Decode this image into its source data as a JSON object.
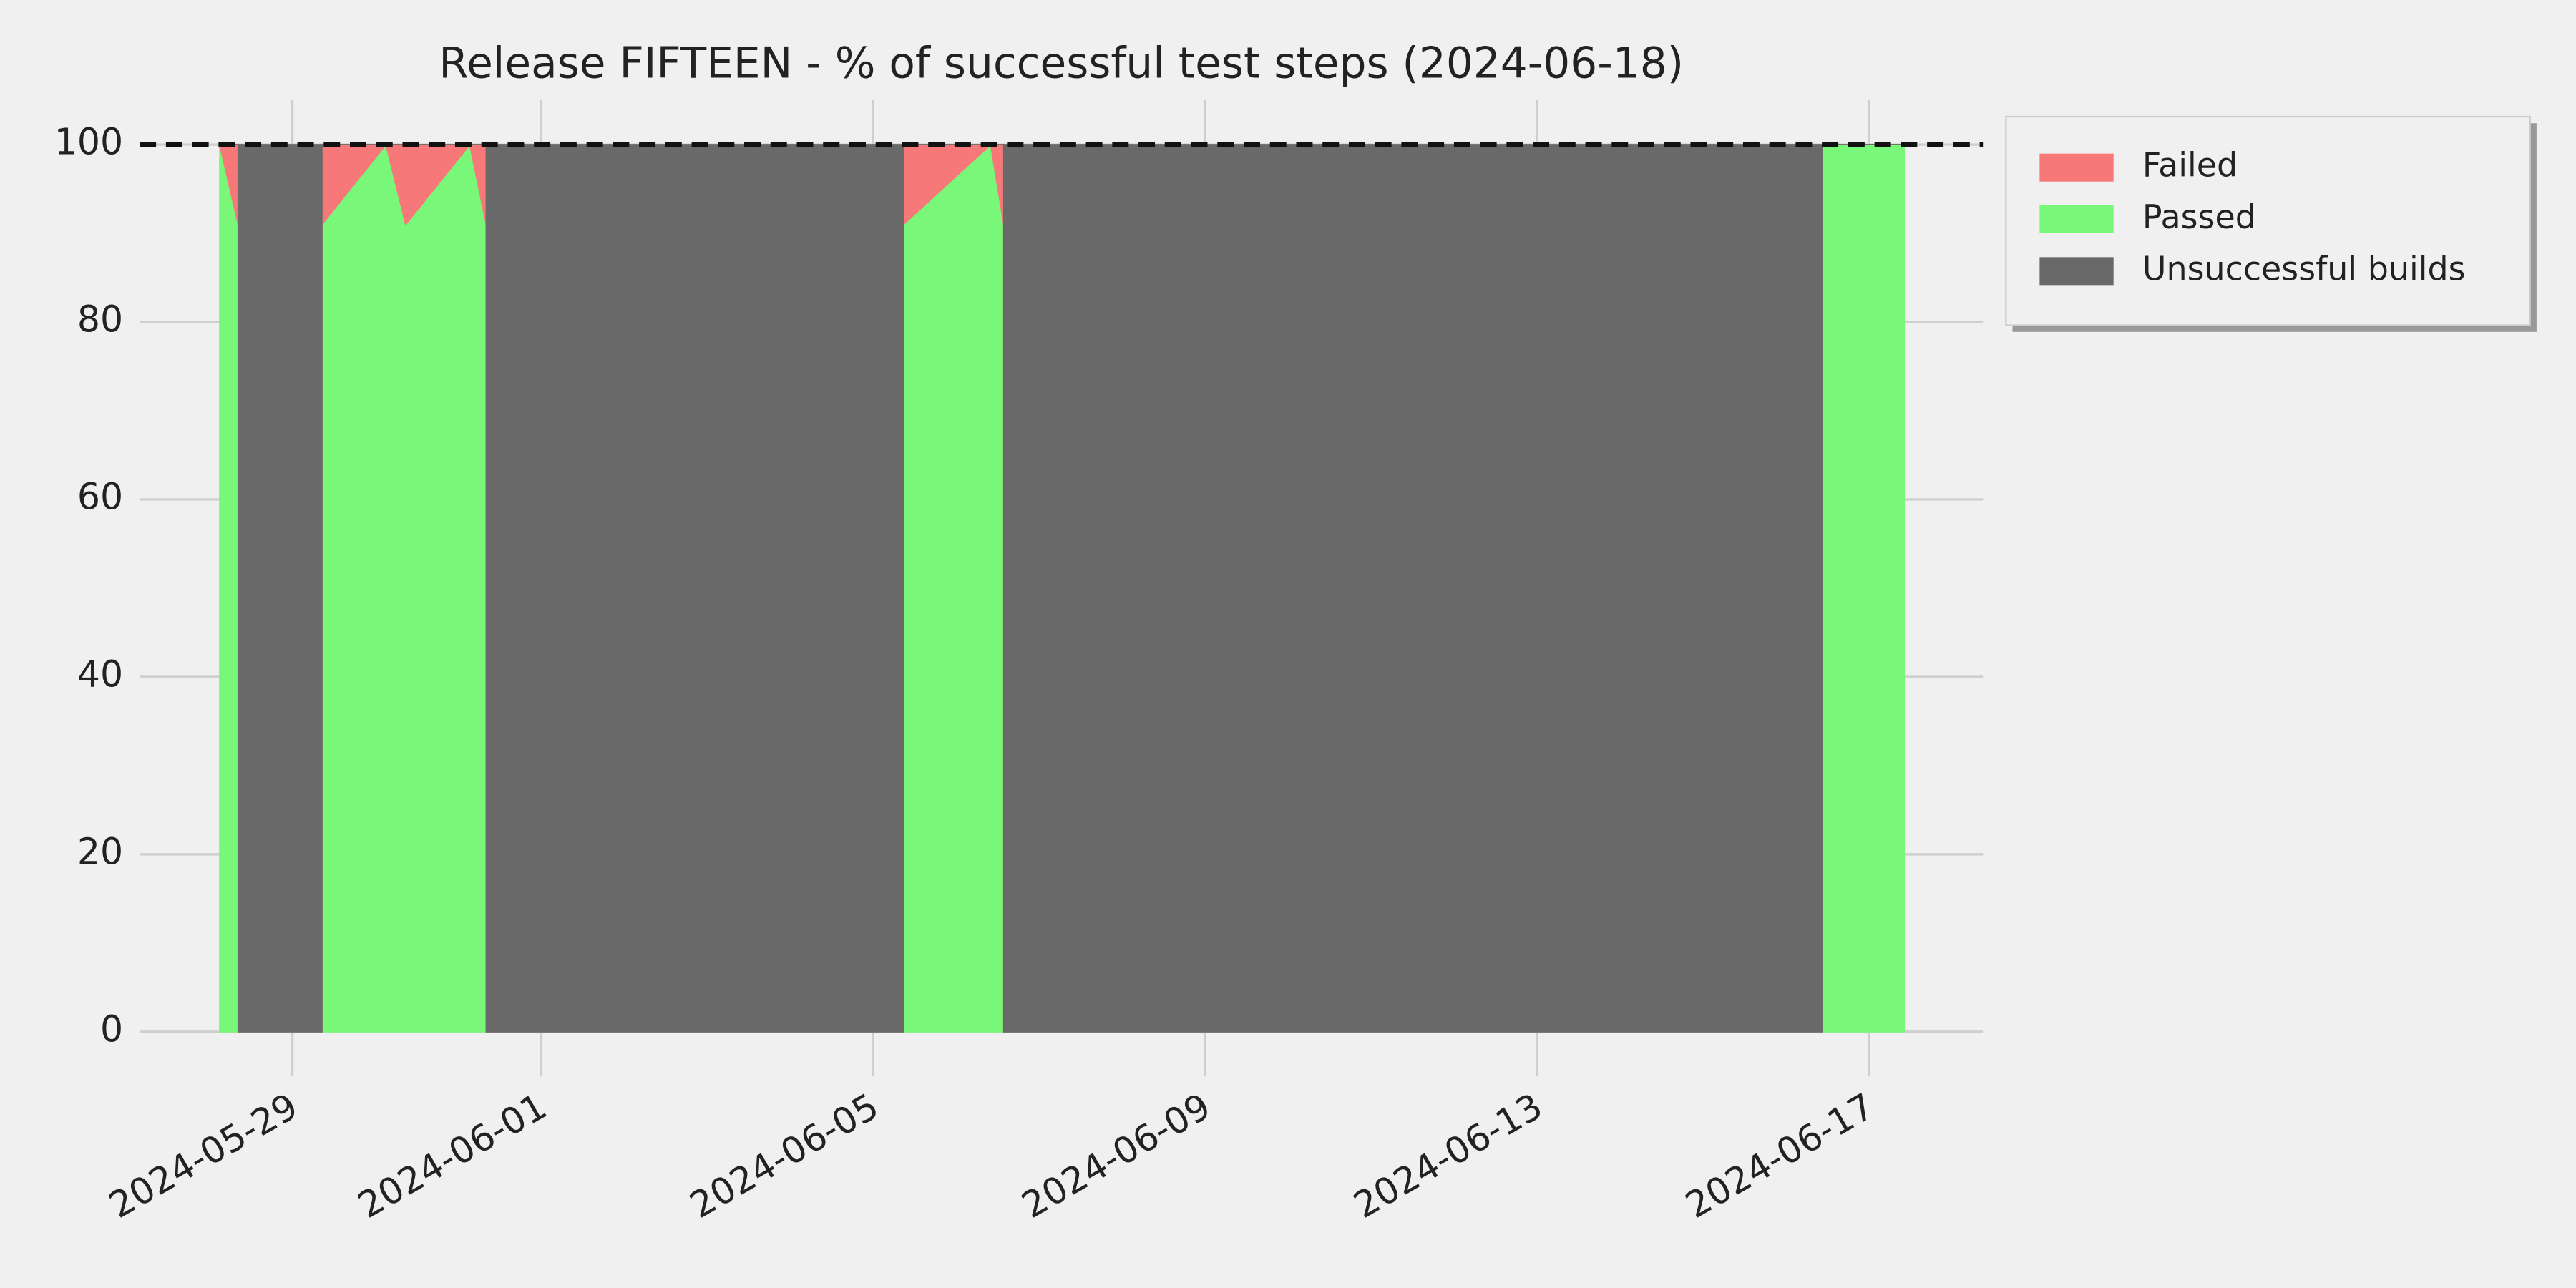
{
  "chart_data": {
    "type": "stacked_area",
    "title": "Release FIFTEEN - % of successful test steps (2024-06-18)",
    "x": [
      "2024-05-28 03:00",
      "2024-05-28 08:20",
      "2024-05-28 08:20",
      "2024-05-29 08:33",
      "2024-05-29 08:33",
      "2024-05-30 03:05",
      "2024-05-30 08:47",
      "2024-05-31 03:20",
      "2024-05-31 08:05",
      "2024-05-31 08:05",
      "2024-06-05 08:47",
      "2024-06-05 08:47",
      "2024-06-06 10:00",
      "2024-06-06 13:47",
      "2024-06-06 13:47",
      "2024-06-16 10:28",
      "2024-06-16 10:28",
      "2024-06-17 10:13"
    ],
    "series": [
      {
        "name": "Passed",
        "color": "#78f778",
        "values": [
          100,
          91,
          0,
          0,
          91,
          100,
          91,
          100,
          91,
          0,
          0,
          91,
          100,
          91,
          0,
          0,
          100,
          100
        ]
      },
      {
        "name": "Failed",
        "color": "#f77878",
        "values": [
          0,
          9,
          0,
          0,
          9,
          0,
          9,
          0,
          9,
          0,
          0,
          9,
          0,
          9,
          0,
          0,
          0,
          0
        ]
      },
      {
        "name": "Unsuccessful builds",
        "color": "#696969",
        "values": [
          0,
          0,
          100,
          100,
          0,
          0,
          0,
          0,
          0,
          100,
          100,
          0,
          0,
          0,
          100,
          100,
          0,
          0
        ]
      }
    ],
    "legend_order": [
      1,
      0,
      2
    ],
    "reference_line": 100,
    "xlim": [
      "2024-05-27 03:50",
      "2024-06-18 09:00"
    ],
    "xticks": [
      "2024-05-29",
      "2024-06-01",
      "2024-06-05",
      "2024-06-09",
      "2024-06-13",
      "2024-06-17"
    ],
    "ylim": [
      -5,
      105
    ],
    "yticks": [
      0,
      20,
      40,
      60,
      80,
      100
    ],
    "grid": true,
    "legend": "upper right outside"
  }
}
